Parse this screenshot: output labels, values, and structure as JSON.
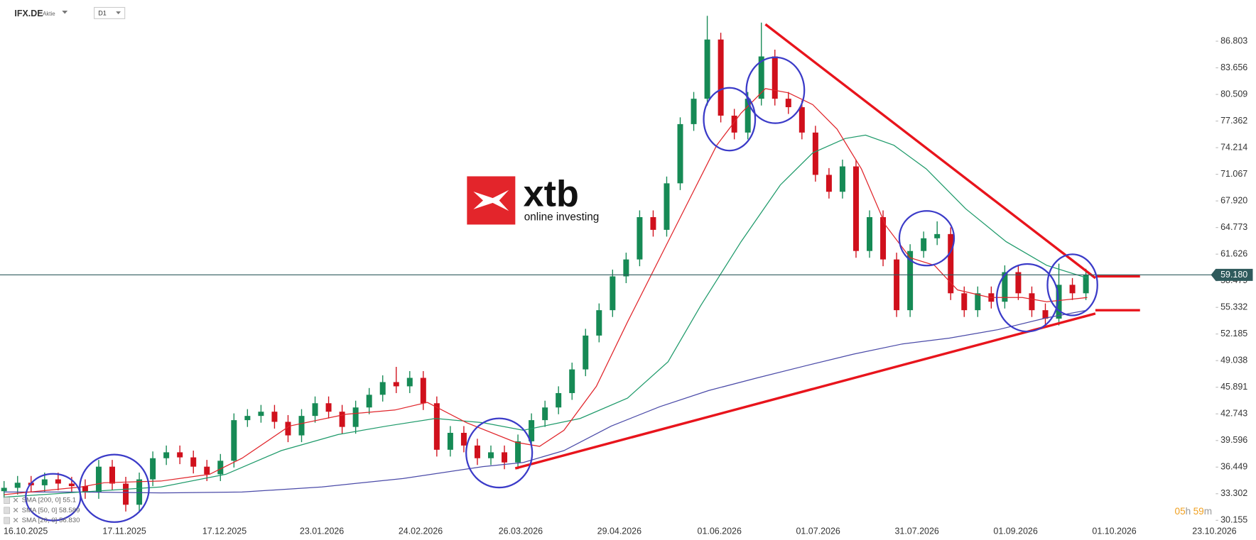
{
  "header": {
    "symbol": "IFX.DE",
    "kind": "Aktie",
    "interval": "D1"
  },
  "logo": {
    "name": "xtb",
    "tagline": "online investing"
  },
  "timer": {
    "hours": "05",
    "hours_unit": "h",
    "minutes": "59",
    "minutes_unit": "m"
  },
  "chart_data": {
    "type": "candlestick",
    "up_color": "#168a55",
    "down_color": "#d0101c",
    "x": [
      0,
      1,
      2,
      3,
      4,
      5,
      6,
      7,
      8,
      9,
      10,
      11,
      12,
      13,
      14,
      15,
      16,
      17,
      18,
      19,
      20,
      21,
      22,
      23,
      24,
      25,
      26,
      27,
      28,
      29,
      30,
      31,
      32,
      33,
      34,
      35,
      36,
      37,
      38,
      39,
      40,
      41,
      42,
      43,
      44,
      45,
      46,
      47,
      48,
      49,
      50,
      51,
      52,
      53,
      54,
      55,
      56,
      57,
      58,
      59,
      60,
      61,
      62,
      63,
      64,
      65,
      66,
      67,
      68,
      69,
      70,
      71,
      72,
      73,
      74,
      75,
      76,
      77,
      78,
      79,
      80
    ],
    "open": [
      33.6,
      34.0,
      34.6,
      34.3,
      35.0,
      34.5,
      34.2,
      33.5,
      36.5,
      34.5,
      32.0,
      35.0,
      37.5,
      38.2,
      37.6,
      36.5,
      35.6,
      37.2,
      42.0,
      42.5,
      43.0,
      41.8,
      40.2,
      42.5,
      44.0,
      43.0,
      41.2,
      43.5,
      45.0,
      46.5,
      46.0,
      47.0,
      44.0,
      38.5,
      40.5,
      39.0,
      37.5,
      38.2,
      37.0,
      39.5,
      42.0,
      43.5,
      45.2,
      48.0,
      52.0,
      55.0,
      59.0,
      61.0,
      66.0,
      64.5,
      70.0,
      77.0,
      80.0,
      87.0,
      78.0,
      76.0,
      80.0,
      85.0,
      80.0,
      79.0,
      76.0,
      71.0,
      69.0,
      72.0,
      62.0,
      66.0,
      61.0,
      55.0,
      62.0,
      63.5,
      64.0,
      57.0,
      55.0,
      57.0,
      56.0,
      59.5,
      57.0,
      55.0,
      54.0,
      58.0,
      57.0
    ],
    "high": [
      34.8,
      35.4,
      35.4,
      35.8,
      35.8,
      35.3,
      35.0,
      37.3,
      37.3,
      35.3,
      35.8,
      38.3,
      39.0,
      39.0,
      38.4,
      37.3,
      38.0,
      42.8,
      43.3,
      43.8,
      43.8,
      42.6,
      43.3,
      44.8,
      44.8,
      43.8,
      44.3,
      45.8,
      47.3,
      48.3,
      47.8,
      47.8,
      44.8,
      41.3,
      41.3,
      39.8,
      39.0,
      39.0,
      40.3,
      42.8,
      44.3,
      46.0,
      48.8,
      52.8,
      55.8,
      59.8,
      61.8,
      66.8,
      66.8,
      70.8,
      77.8,
      80.8,
      89.8,
      87.8,
      78.8,
      80.8,
      89.0,
      85.8,
      80.8,
      79.8,
      76.8,
      71.8,
      72.8,
      72.8,
      66.8,
      66.8,
      61.8,
      62.8,
      64.3,
      65.5,
      64.8,
      57.8,
      57.8,
      57.8,
      60.3,
      60.3,
      57.8,
      55.8,
      60.5,
      58.8,
      59.9
    ],
    "low": [
      32.8,
      33.2,
      33.5,
      33.5,
      33.7,
      33.4,
      32.7,
      32.7,
      33.7,
      31.2,
      31.2,
      34.2,
      36.7,
      36.8,
      35.7,
      34.8,
      34.8,
      36.4,
      41.2,
      41.7,
      41.0,
      39.4,
      39.4,
      41.7,
      42.2,
      40.4,
      40.4,
      42.7,
      44.2,
      45.2,
      45.2,
      43.2,
      37.7,
      37.7,
      38.2,
      36.7,
      36.7,
      36.2,
      36.2,
      38.7,
      41.2,
      42.7,
      44.4,
      47.2,
      51.2,
      54.2,
      58.2,
      60.2,
      63.7,
      63.7,
      69.2,
      76.2,
      79.2,
      77.2,
      75.2,
      75.2,
      79.2,
      79.2,
      78.2,
      75.2,
      70.2,
      68.2,
      68.2,
      61.2,
      61.2,
      60.2,
      54.2,
      54.2,
      61.2,
      62.7,
      56.2,
      54.2,
      54.2,
      55.2,
      55.2,
      56.2,
      54.2,
      53.2,
      53.2,
      56.2,
      56.2
    ],
    "close": [
      34.0,
      34.6,
      34.3,
      35.0,
      34.5,
      34.2,
      33.5,
      36.5,
      34.5,
      32.0,
      35.0,
      37.5,
      38.2,
      37.6,
      36.5,
      35.6,
      37.2,
      42.0,
      42.5,
      43.0,
      41.8,
      40.2,
      42.5,
      44.0,
      43.0,
      41.2,
      43.5,
      45.0,
      46.5,
      46.0,
      47.0,
      44.0,
      38.5,
      40.5,
      39.0,
      37.5,
      38.2,
      37.0,
      39.5,
      42.0,
      43.5,
      45.2,
      48.0,
      52.0,
      55.0,
      59.0,
      61.0,
      66.0,
      64.5,
      70.0,
      77.0,
      80.0,
      87.0,
      78.0,
      76.0,
      80.0,
      85.0,
      80.0,
      79.0,
      76.0,
      71.0,
      69.0,
      72.0,
      62.0,
      66.0,
      61.0,
      55.0,
      62.0,
      63.5,
      64.0,
      57.0,
      55.0,
      57.0,
      56.0,
      59.5,
      57.0,
      55.0,
      54.0,
      58.0,
      57.0,
      59.18
    ],
    "lines": [
      {
        "name": "SMA [200, 0] 55.1",
        "color": "#4a4aa8",
        "x": [
          0,
          5.7,
          11.6,
          17.6,
          23.5,
          29.5,
          35.4,
          38.4,
          41.4,
          44.9,
          48.5,
          52.1,
          55.7,
          59.2,
          62.8,
          66.4,
          69.9,
          73.5,
          77.1,
          80.1
        ],
        "values": [
          33.5,
          33.5,
          33.4,
          33.5,
          34.1,
          35.1,
          36.5,
          37.0,
          38.4,
          41.3,
          43.6,
          45.5,
          47.0,
          48.4,
          49.8,
          51.0,
          51.7,
          52.7,
          54.1,
          55.0
        ]
      },
      {
        "name": "SMA [50, 0] 58.589",
        "color": "#1e9a6a",
        "x": [
          0,
          5.7,
          11.6,
          16.4,
          20.5,
          24.7,
          28.3,
          31.9,
          35.4,
          38.4,
          42.6,
          46.1,
          49.1,
          51.5,
          54.5,
          57.4,
          59.8,
          62.2,
          63.7,
          65.8,
          68.2,
          71.1,
          74.1,
          77.1,
          80.1
        ],
        "values": [
          32.9,
          33.5,
          34.1,
          35.6,
          38.4,
          40.3,
          41.3,
          42.2,
          41.7,
          40.8,
          42.2,
          44.6,
          48.9,
          55.5,
          63.1,
          69.8,
          73.6,
          75.3,
          75.7,
          74.5,
          71.7,
          67.0,
          63.1,
          60.3,
          58.8
        ]
      },
      {
        "name": "SMA [20, 0] 56.830",
        "color": "#e0242a",
        "x": [
          0,
          5.7,
          7.4,
          11.6,
          15.2,
          17.6,
          21.1,
          25.3,
          28.9,
          31.3,
          34.2,
          37.8,
          39.6,
          41.4,
          43.8,
          46.1,
          48.5,
          50.9,
          52.7,
          54.5,
          56.3,
          58.0,
          59.8,
          61.6,
          63.4,
          65.2,
          67.0,
          68.8,
          70.5,
          72.9,
          75.3,
          77.1,
          80.1
        ],
        "values": [
          33.2,
          34.1,
          34.6,
          34.8,
          35.6,
          37.5,
          41.3,
          42.7,
          43.2,
          44.1,
          41.7,
          39.4,
          38.9,
          40.8,
          46.0,
          53.6,
          61.2,
          68.8,
          74.5,
          78.3,
          81.2,
          80.7,
          79.3,
          76.4,
          71.7,
          65.0,
          61.2,
          60.3,
          57.4,
          56.5,
          56.5,
          56.0,
          56.5
        ]
      }
    ],
    "trendlines": [
      {
        "color": "#e8141c",
        "x": [
          56.3,
          80.7
        ],
        "values": [
          88.8,
          58.8
        ]
      },
      {
        "color": "#e8141c",
        "x": [
          37.8,
          80.7
        ],
        "values": [
          36.3,
          54.6
        ]
      },
      {
        "color": "#e8141c",
        "x": [
          80.7,
          84.0
        ],
        "values": [
          59.0,
          59.0
        ]
      },
      {
        "color": "#e8141c",
        "x": [
          80.7,
          84.0
        ],
        "values": [
          55.0,
          55.0
        ]
      }
    ],
    "last_price": {
      "value": 59.18,
      "label": "59.180",
      "color": "#2f5a5c"
    },
    "xlim": [
      -0.3,
      89.6
    ],
    "ylim": [
      29.85,
      91.65
    ],
    "xticks": [
      {
        "value": 1.6,
        "label": "16.10.2025"
      },
      {
        "value": 8.9,
        "label": "17.11.2025"
      },
      {
        "value": 16.3,
        "label": "17.12.2025"
      },
      {
        "value": 23.5,
        "label": "23.01.2026"
      },
      {
        "value": 30.8,
        "label": "24.02.2026"
      },
      {
        "value": 38.2,
        "label": "26.03.2026"
      },
      {
        "value": 45.5,
        "label": "29.04.2026"
      },
      {
        "value": 52.9,
        "label": "01.06.2026"
      },
      {
        "value": 60.2,
        "label": "01.07.2026"
      },
      {
        "value": 67.5,
        "label": "31.07.2026"
      },
      {
        "value": 74.8,
        "label": "01.09.2026"
      },
      {
        "value": 82.1,
        "label": "01.10.2026"
      },
      {
        "value": 89.5,
        "label": "23.10.2026"
      }
    ],
    "yticks": [
      86.803,
      83.656,
      80.509,
      77.362,
      74.214,
      71.067,
      {
        "value": 67.92,
        "label": "67.920"
      },
      64.773,
      61.626,
      58.479,
      55.332,
      52.185,
      49.038,
      45.891,
      42.743,
      39.596,
      36.449,
      33.302,
      30.155
    ]
  }
}
